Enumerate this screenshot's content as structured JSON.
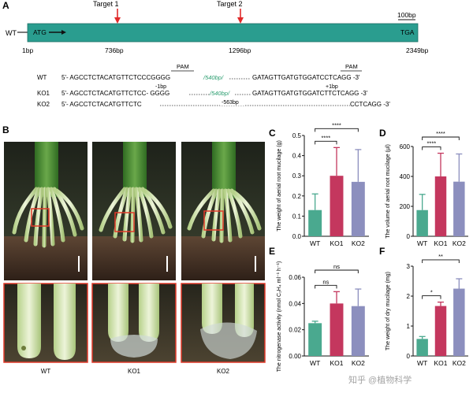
{
  "panels": {
    "A": "A",
    "B": "B",
    "C": "C",
    "D": "D",
    "E": "E",
    "F": "F"
  },
  "gene": {
    "left_label": "WT",
    "start_codon": "ATG",
    "stop_codon": "TGA",
    "color": "#2a9d8f",
    "scale_label": "100bp",
    "targets": [
      {
        "label": "Target 1",
        "bp": 736
      },
      {
        "label": "Target 2",
        "bp": 1296
      }
    ],
    "positions": [
      "1bp",
      "736bp",
      "1296bp",
      "2349bp"
    ],
    "length_bp": 2349
  },
  "sequences": {
    "pam1": "PAM",
    "pam2": "PAM",
    "rows": [
      {
        "name": "WT",
        "left": "5'- AGCCTCTACATGTTCTCCCGGGG",
        "gap": "/540bp/",
        "right": "GATAGTTGATGTGGATCCTCAGG -3'"
      },
      {
        "name": "KO1",
        "left": "5'- AGCCTCTACATGTTCTCC- GGGG",
        "gap": "/540bp/",
        "right": "GATAGTTGATGTGGATCTTCTCAGG -3'"
      },
      {
        "name": "KO2",
        "left": "5'- AGCCTCTACATGTTCTC",
        "gap": "-563bp",
        "right": "CCTCAGG -3'"
      }
    ],
    "ko1_del": "-1bp",
    "ko1_ins": "+1bp"
  },
  "photos": {
    "labels": [
      "WT",
      "KO1",
      "KO2"
    ]
  },
  "watermark": "知乎 @植物科学",
  "chart_data": [
    {
      "panel": "C",
      "type": "bar",
      "categories": [
        "WT",
        "KO1",
        "KO2"
      ],
      "values": [
        0.13,
        0.3,
        0.27
      ],
      "errors": [
        0.08,
        0.14,
        0.16
      ],
      "colors": [
        "#4aa98f",
        "#c4375e",
        "#8c8fbe"
      ],
      "ylabel": "The weight of aerial root mucilage (g)",
      "ylim": [
        0,
        0.5
      ],
      "yticks": [
        "0.0",
        "0.1",
        "0.2",
        "0.3",
        "0.4",
        "0.5"
      ],
      "yticks_values": [
        0,
        0.1,
        0.2,
        0.3,
        0.4,
        0.5
      ],
      "significance": [
        {
          "from": 0,
          "to": 1,
          "label": "****"
        },
        {
          "from": 0,
          "to": 2,
          "label": "****"
        }
      ]
    },
    {
      "panel": "D",
      "type": "bar",
      "categories": [
        "WT",
        "KO1",
        "KO2"
      ],
      "values": [
        175,
        400,
        365
      ],
      "errors": [
        105,
        155,
        185
      ],
      "colors": [
        "#4aa98f",
        "#c4375e",
        "#8c8fbe"
      ],
      "ylabel": "The volume of aerial root mucilage (μl)",
      "ylim": [
        0,
        600
      ],
      "yticks": [
        "0",
        "200",
        "400",
        "600"
      ],
      "yticks_values": [
        0,
        200,
        400,
        600
      ],
      "significance": [
        {
          "from": 0,
          "to": 1,
          "label": "****"
        },
        {
          "from": 0,
          "to": 2,
          "label": "****"
        }
      ]
    },
    {
      "panel": "E",
      "type": "bar",
      "categories": [
        "WT",
        "KO1",
        "KO2"
      ],
      "values": [
        0.025,
        0.04,
        0.038
      ],
      "errors": [
        0.0015,
        0.009,
        0.013
      ],
      "colors": [
        "#4aa98f",
        "#c4375e",
        "#8c8fbe"
      ],
      "ylabel": "The nitrogenase activity (nmol C₂H₄ ml⁻¹ h⁻¹)",
      "ylim": [
        0,
        0.06
      ],
      "yticks": [
        "0.00",
        "0.02",
        "0.04",
        "0.06"
      ],
      "yticks_values": [
        0,
        0.02,
        0.04,
        0.06
      ],
      "significance": [
        {
          "from": 0,
          "to": 1,
          "label": "ns"
        },
        {
          "from": 0,
          "to": 2,
          "label": "ns"
        }
      ]
    },
    {
      "panel": "F",
      "type": "bar",
      "categories": [
        "WT",
        "KO1",
        "KO2"
      ],
      "values": [
        0.57,
        1.67,
        2.25
      ],
      "errors": [
        0.08,
        0.13,
        0.33
      ],
      "colors": [
        "#4aa98f",
        "#c4375e",
        "#8c8fbe"
      ],
      "ylabel": "The weight of dry mucilage (mg)",
      "ylim": [
        0,
        3
      ],
      "yticks": [
        "0",
        "1",
        "2",
        "3"
      ],
      "yticks_values": [
        0,
        1,
        2,
        3
      ],
      "significance": [
        {
          "from": 0,
          "to": 1,
          "label": "*"
        },
        {
          "from": 0,
          "to": 2,
          "label": "**"
        }
      ]
    }
  ]
}
